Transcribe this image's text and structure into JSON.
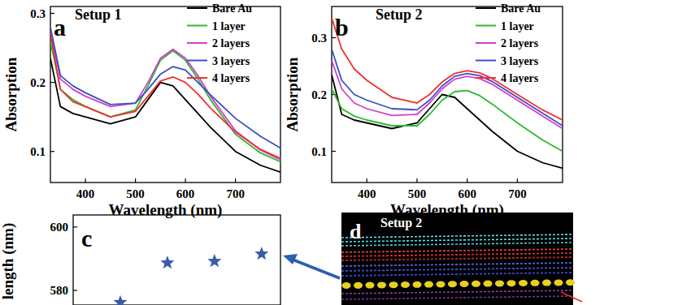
{
  "chart_data": [
    {
      "type": "line",
      "panel_label": "a",
      "title": "Setup 1",
      "x_label": "Wavelength (nm)",
      "y_label": "Absorption",
      "x": [
        330,
        350,
        375,
        400,
        450,
        500,
        525,
        550,
        575,
        600,
        625,
        650,
        700,
        750,
        790
      ],
      "xlim": [
        330,
        790
      ],
      "xticks": [
        400,
        500,
        600,
        700
      ],
      "ylim": [
        0.055,
        0.31
      ],
      "yticks": [
        0.1,
        0.2,
        0.3
      ],
      "legend": "upper right",
      "series": [
        {
          "name": "Bare Au",
          "color": "#000000",
          "values": [
            0.235,
            0.165,
            0.155,
            0.15,
            0.14,
            0.15,
            0.175,
            0.2,
            0.195,
            0.175,
            0.155,
            0.135,
            0.1,
            0.08,
            0.07
          ]
        },
        {
          "name": "1 layer",
          "color": "#2db82d",
          "values": [
            0.26,
            0.19,
            0.175,
            0.165,
            0.15,
            0.16,
            0.195,
            0.232,
            0.246,
            0.232,
            0.205,
            0.175,
            0.125,
            0.098,
            0.085
          ]
        },
        {
          "name": "2 layers",
          "color": "#d040d0",
          "values": [
            0.275,
            0.205,
            0.19,
            0.18,
            0.165,
            0.17,
            0.2,
            0.235,
            0.248,
            0.235,
            0.21,
            0.18,
            0.13,
            0.102,
            0.088
          ]
        },
        {
          "name": "3 layers",
          "color": "#3a4fc0",
          "values": [
            0.28,
            0.21,
            0.195,
            0.185,
            0.168,
            0.17,
            0.19,
            0.212,
            0.223,
            0.218,
            0.2,
            0.182,
            0.148,
            0.122,
            0.105
          ]
        },
        {
          "name": "4 layers",
          "color": "#f03030",
          "values": [
            0.27,
            0.19,
            0.172,
            0.165,
            0.15,
            0.158,
            0.18,
            0.202,
            0.208,
            0.2,
            0.183,
            0.163,
            0.128,
            0.103,
            0.09
          ]
        }
      ]
    },
    {
      "type": "line",
      "panel_label": "b",
      "title": "Setup 2",
      "x_label": "Wavelength (nm)",
      "y_label": "Absorption",
      "x": [
        330,
        350,
        375,
        400,
        450,
        500,
        525,
        550,
        575,
        600,
        625,
        650,
        700,
        750,
        790
      ],
      "xlim": [
        330,
        790
      ],
      "xticks": [
        400,
        500,
        600,
        700
      ],
      "ylim": [
        0.045,
        0.355
      ],
      "yticks": [
        0.1,
        0.2,
        0.3
      ],
      "legend": "upper right",
      "series": [
        {
          "name": "Bare Au",
          "color": "#000000",
          "values": [
            0.235,
            0.165,
            0.155,
            0.15,
            0.14,
            0.15,
            0.175,
            0.2,
            0.195,
            0.175,
            0.155,
            0.135,
            0.1,
            0.08,
            0.07
          ]
        },
        {
          "name": "1 layer",
          "color": "#2db82d",
          "values": [
            0.21,
            0.175,
            0.162,
            0.155,
            0.145,
            0.145,
            0.165,
            0.19,
            0.205,
            0.207,
            0.198,
            0.183,
            0.15,
            0.12,
            0.1
          ]
        },
        {
          "name": "2 layers",
          "color": "#d040d0",
          "values": [
            0.26,
            0.21,
            0.185,
            0.175,
            0.163,
            0.165,
            0.185,
            0.21,
            0.227,
            0.232,
            0.228,
            0.218,
            0.19,
            0.162,
            0.14
          ]
        },
        {
          "name": "3 layers",
          "color": "#3a4fc0",
          "values": [
            0.28,
            0.225,
            0.2,
            0.19,
            0.175,
            0.173,
            0.19,
            0.215,
            0.232,
            0.237,
            0.233,
            0.223,
            0.195,
            0.167,
            0.145
          ]
        },
        {
          "name": "4 layers",
          "color": "#f03030",
          "values": [
            0.335,
            0.28,
            0.245,
            0.225,
            0.195,
            0.185,
            0.2,
            0.222,
            0.237,
            0.242,
            0.238,
            0.228,
            0.2,
            0.173,
            0.155
          ]
        }
      ]
    },
    {
      "type": "scatter",
      "panel_label": "c",
      "y_label": "length (nm)",
      "x": [
        1,
        2,
        3,
        4
      ],
      "values": [
        576.2,
        588.7,
        589.2,
        591.5
      ],
      "xlim": [
        0,
        4.4
      ],
      "ylim": [
        575.4,
        603.8
      ],
      "yticks": [
        580,
        600
      ],
      "tick_labels": "y",
      "marker": "star",
      "color": "#3b5ba9"
    }
  ],
  "diagram": {
    "panel_label": "d",
    "title": "Setup 2"
  }
}
